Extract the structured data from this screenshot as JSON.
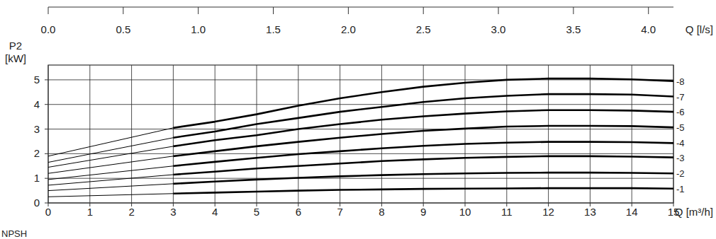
{
  "chart_data": {
    "type": "line",
    "x_label": "Q [m³/h]",
    "x2_label": "Q [l/s]",
    "y_label": "P2 [kW]",
    "annotations": [
      "NPSH"
    ],
    "x": [
      0,
      3,
      4,
      5,
      6,
      7,
      8,
      9,
      10,
      11,
      12,
      13,
      14,
      15
    ],
    "xlim": [
      0,
      15
    ],
    "xticks": [
      0,
      1,
      2,
      3,
      4,
      5,
      6,
      7,
      8,
      9,
      10,
      11,
      12,
      13,
      14,
      15
    ],
    "x2lim": [
      0,
      4.16667
    ],
    "x2ticks": [
      {
        "value": 0,
        "label": "0.0"
      },
      0.5,
      {
        "value": 1,
        "label": "1.0"
      },
      1.5,
      {
        "value": 2,
        "label": "2.0"
      },
      2.5,
      {
        "value": 3,
        "label": "3.0"
      },
      3.5,
      {
        "value": 4,
        "label": "4.0"
      }
    ],
    "ylim": [
      0,
      5.6
    ],
    "yticks": [
      0,
      1,
      2,
      3,
      4,
      5
    ],
    "grid": true,
    "color": "#000000",
    "series": [
      {
        "name": "-1",
        "color": "#000000",
        "values": [
          0.25,
          0.38,
          0.42,
          0.46,
          0.5,
          0.53,
          0.55,
          0.57,
          0.58,
          0.59,
          0.6,
          0.6,
          0.6,
          0.58
        ]
      },
      {
        "name": "-2",
        "color": "#000000",
        "values": [
          0.5,
          0.78,
          0.87,
          0.95,
          1.02,
          1.08,
          1.13,
          1.17,
          1.2,
          1.22,
          1.23,
          1.23,
          1.22,
          1.2
        ]
      },
      {
        "name": "-3",
        "color": "#000000",
        "values": [
          0.72,
          1.15,
          1.27,
          1.4,
          1.5,
          1.6,
          1.7,
          1.77,
          1.83,
          1.87,
          1.9,
          1.9,
          1.88,
          1.85
        ]
      },
      {
        "name": "-4",
        "color": "#000000",
        "values": [
          0.95,
          1.5,
          1.67,
          1.83,
          1.98,
          2.1,
          2.22,
          2.32,
          2.4,
          2.45,
          2.48,
          2.48,
          2.47,
          2.43
        ]
      },
      {
        "name": "-5",
        "color": "#000000",
        "values": [
          1.2,
          1.9,
          2.1,
          2.3,
          2.48,
          2.65,
          2.8,
          2.93,
          3.02,
          3.1,
          3.13,
          3.13,
          3.12,
          3.07
        ]
      },
      {
        "name": "-6",
        "color": "#000000",
        "values": [
          1.45,
          2.3,
          2.55,
          2.75,
          3.0,
          3.2,
          3.38,
          3.52,
          3.63,
          3.72,
          3.77,
          3.77,
          3.75,
          3.7
        ]
      },
      {
        "name": "-7",
        "color": "#000000",
        "values": [
          1.65,
          2.65,
          2.9,
          3.2,
          3.45,
          3.7,
          3.9,
          4.1,
          4.25,
          4.35,
          4.42,
          4.42,
          4.4,
          4.32
        ]
      },
      {
        "name": "-8",
        "color": "#000000",
        "values": [
          1.9,
          3.05,
          3.3,
          3.6,
          3.95,
          4.25,
          4.5,
          4.72,
          4.88,
          5.0,
          5.05,
          5.05,
          5.02,
          4.95
        ]
      }
    ]
  }
}
